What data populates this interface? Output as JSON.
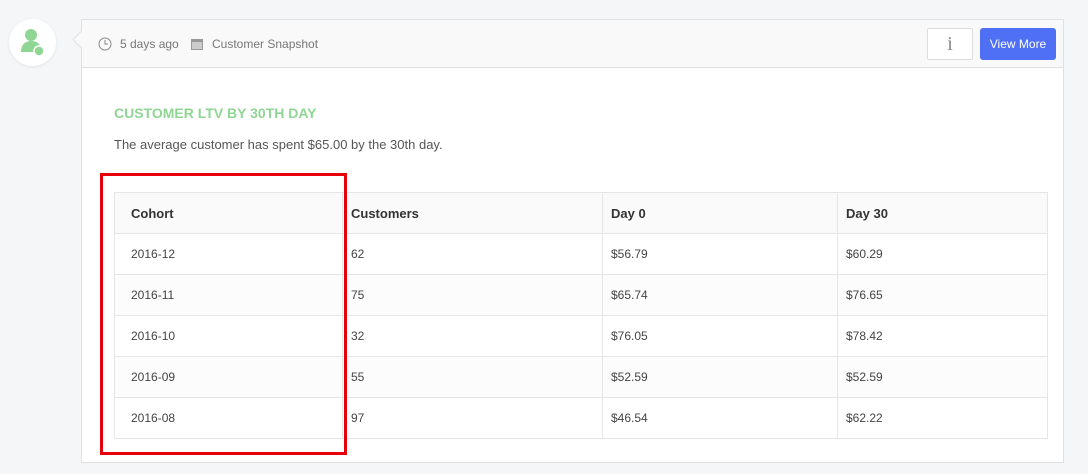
{
  "header": {
    "time_ago": "5 days ago",
    "source": "Customer Snapshot",
    "info_label": "i",
    "view_more_label": "View More"
  },
  "main": {
    "title": "CUSTOMER LTV BY 30TH DAY",
    "description": "The average customer has spent $65.00 by the 30th day."
  },
  "table": {
    "columns": [
      "Cohort",
      "Customers",
      "Day 0",
      "Day 30"
    ],
    "rows": [
      [
        "2016-12",
        "62",
        "$56.79",
        "$60.29"
      ],
      [
        "2016-11",
        "75",
        "$65.74",
        "$76.65"
      ],
      [
        "2016-10",
        "32",
        "$76.05",
        "$78.42"
      ],
      [
        "2016-09",
        "55",
        "$52.59",
        "$52.59"
      ],
      [
        "2016-08",
        "97",
        "$46.54",
        "$62.22"
      ]
    ]
  },
  "colors": {
    "accent": "#4f6ff5",
    "title": "#8fd694",
    "highlight": "#e5000a"
  }
}
